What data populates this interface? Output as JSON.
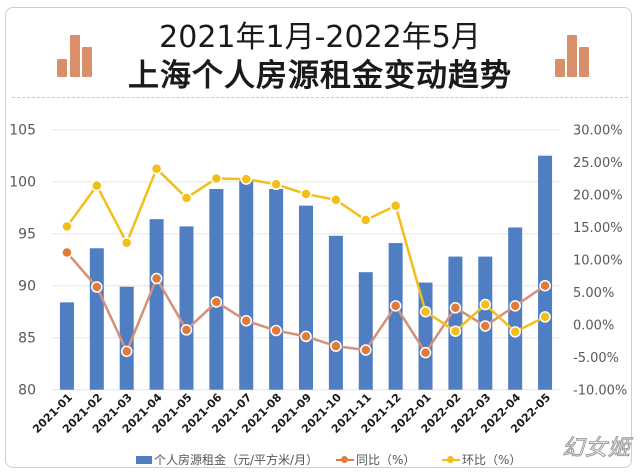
{
  "header": {
    "title_line1": "2021年1月-2022年5月",
    "title_line2": "上海个人房源租金变动趋势",
    "icon": "bar-chart-icon",
    "icon_color": "#D98F69"
  },
  "legend": {
    "rent": "个人房源租金（元/平方米/月）",
    "yoy": "同比（%）",
    "mom": "环比（%）"
  },
  "watermark": "幻女姬",
  "colors": {
    "bar": "#4F7FC2",
    "yoy_line": "#D4907A",
    "yoy_marker": "#E07B39",
    "mom_line": "#F2BE1A",
    "mom_marker": "#F2BE1A",
    "grid": "#E6E6E6",
    "axis_text": "#595959"
  },
  "chart_data": {
    "type": "bar",
    "title": "2021年1月-2022年5月 上海个人房源租金变动趋势",
    "categories": [
      "2021-01",
      "2021-02",
      "2021-03",
      "2021-04",
      "2021-05",
      "2021-06",
      "2021-07",
      "2021-08",
      "2021-09",
      "2021-10",
      "2021-11",
      "2021-12",
      "2022-01",
      "2022-02",
      "2022-03",
      "2022-04",
      "2022-05"
    ],
    "series": [
      {
        "name": "个人房源租金（元/平方米/月）",
        "type": "bar",
        "axis": "left",
        "values": [
          88.4,
          93.6,
          89.9,
          96.4,
          95.7,
          99.3,
          100.1,
          99.3,
          97.7,
          94.8,
          91.3,
          94.1,
          90.3,
          92.8,
          92.8,
          95.6,
          102.5
        ]
      },
      {
        "name": "同比（%）",
        "type": "line",
        "axis": "right",
        "values": [
          11.1,
          5.8,
          -4.1,
          7.1,
          -0.8,
          3.5,
          0.6,
          -0.9,
          -1.8,
          -3.3,
          -3.9,
          2.9,
          -4.3,
          2.6,
          -0.2,
          2.9,
          6.0
        ]
      },
      {
        "name": "环比（%）",
        "type": "line",
        "axis": "right",
        "values": [
          15.1,
          21.4,
          12.6,
          24.0,
          19.5,
          22.5,
          22.4,
          21.6,
          20.1,
          19.2,
          16.1,
          18.3,
          2.0,
          -1.0,
          3.1,
          -1.1,
          1.2
        ]
      }
    ],
    "xlabel": "",
    "ylabel": "",
    "ylim": [
      80,
      105
    ],
    "y_ticks": [
      "80",
      "85",
      "90",
      "95",
      "100",
      "105"
    ],
    "y2lim": [
      -10,
      30
    ],
    "y2_ticks": [
      "-10.00%",
      "-5.00%",
      "0.00%",
      "5.00%",
      "10.00%",
      "15.00%",
      "20.00%",
      "25.00%",
      "30.00%"
    ],
    "grid": true,
    "legend_position": "bottom"
  }
}
